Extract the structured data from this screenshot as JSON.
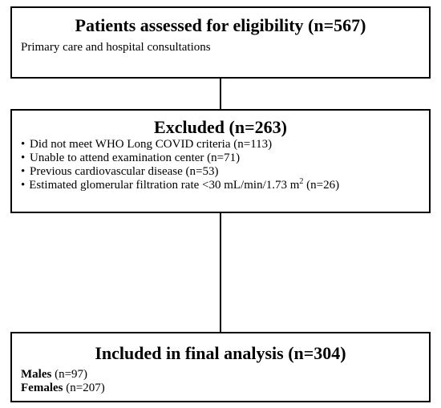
{
  "assessed": {
    "title": "Patients assessed for eligibility (n=567)",
    "subtitle": "Primary care and hospital consultations"
  },
  "excluded": {
    "title": "Excluded (n=263)",
    "bullet": "•",
    "items": [
      "Did not meet WHO Long COVID criteria (n=113)",
      "Unable to attend examination center (n=71)",
      "Previous cardiovascular disease (n=53)"
    ],
    "egfr_text": "Estimated glomerular filtration rate <30 mL/min/1.73 m",
    "egfr_superscript": "2",
    "egfr_count": " (n=26)"
  },
  "included": {
    "title": "Included in final analysis (n=304)",
    "males_label": "Males",
    "males_count": " (n=97)",
    "females_label": "Females",
    "females_count": " (n=207)"
  }
}
